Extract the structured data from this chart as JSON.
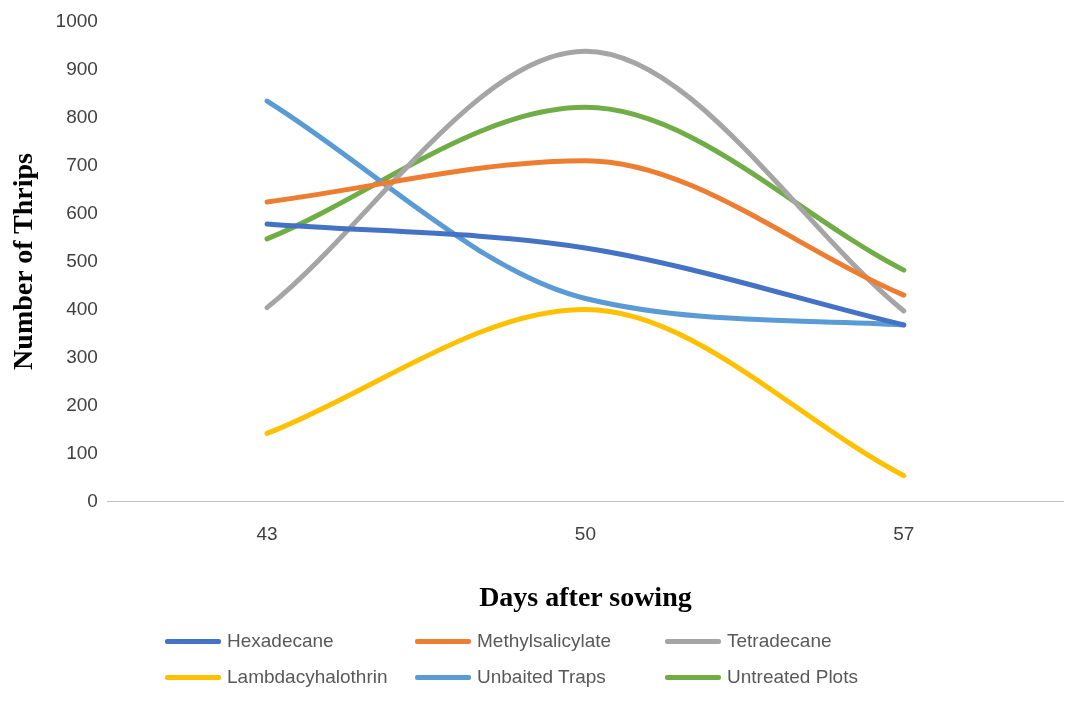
{
  "chart_data": {
    "type": "line",
    "xlabel": "Days after sowing",
    "ylabel": "Number of Thrips",
    "categories": [
      "43",
      "50",
      "57"
    ],
    "ylim": [
      0,
      1000
    ],
    "yticks": [
      0,
      100,
      200,
      300,
      400,
      500,
      600,
      700,
      800,
      900,
      1000
    ],
    "grid": false,
    "legend": "bottom",
    "marker": "none",
    "series": [
      {
        "name": "Hexadecane",
        "color": "#4472c4",
        "values": [
          578,
          528,
          368
        ]
      },
      {
        "name": "Methylsalicylate",
        "color": "#ed7d31",
        "values": [
          624,
          710,
          430
        ]
      },
      {
        "name": "Tetradecane",
        "color": "#a5a5a5",
        "values": [
          404,
          938,
          397
        ]
      },
      {
        "name": "Lambdacyhalothrin",
        "color": "#ffc000",
        "values": [
          142,
          400,
          54
        ]
      },
      {
        "name": "Unbaited Traps",
        "color": "#5b9bd5",
        "values": [
          834,
          423,
          368
        ]
      },
      {
        "name": "Untreated Plots",
        "color": "#70ad47",
        "values": [
          547,
          821,
          482
        ]
      }
    ]
  }
}
